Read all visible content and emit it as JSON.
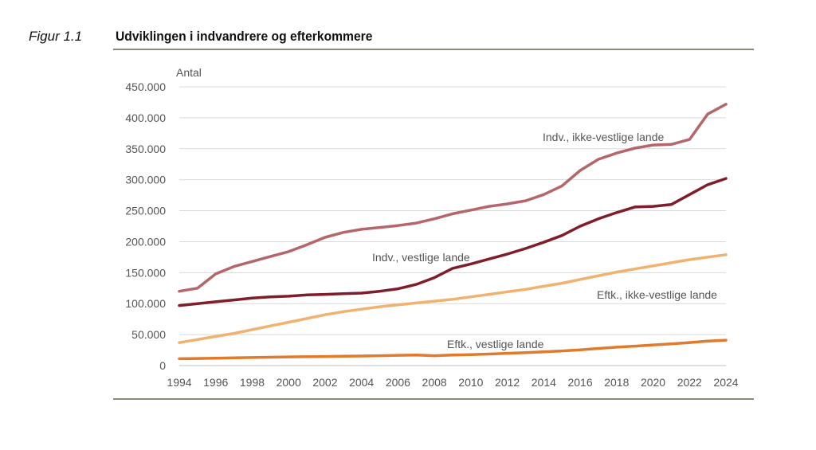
{
  "figure": {
    "label": "Figur 1.1",
    "title": "Udviklingen i indvandrere og efterkommere"
  },
  "chart_data": {
    "type": "line",
    "ylabel": "Antal",
    "xlabel": "",
    "ylim": [
      0,
      450000
    ],
    "yticks": [
      0,
      50000,
      100000,
      150000,
      200000,
      250000,
      300000,
      350000,
      400000,
      450000
    ],
    "ytick_labels": [
      "0",
      "50.000",
      "100.000",
      "150.000",
      "200.000",
      "250.000",
      "300.000",
      "350.000",
      "400.000",
      "450.000"
    ],
    "xlim": [
      1994,
      2024
    ],
    "xticks": [
      1994,
      1996,
      1998,
      2000,
      2002,
      2004,
      2006,
      2008,
      2010,
      2012,
      2014,
      2016,
      2018,
      2020,
      2022,
      2024
    ],
    "xtick_labels": [
      "1994",
      "1996",
      "1998",
      "2000",
      "2002",
      "2004",
      "2006",
      "2008",
      "2010",
      "2012",
      "2014",
      "2016",
      "2018",
      "2020",
      "2022",
      "2024"
    ],
    "grid": "horizontal",
    "x": [
      1994,
      1995,
      1996,
      1997,
      1998,
      1999,
      2000,
      2001,
      2002,
      2003,
      2004,
      2005,
      2006,
      2007,
      2008,
      2009,
      2010,
      2011,
      2012,
      2013,
      2014,
      2015,
      2016,
      2017,
      2018,
      2019,
      2020,
      2021,
      2022,
      2023,
      2024
    ],
    "series": [
      {
        "name": "Indv., ikke-vestlige lande",
        "color": "#b4666a",
        "values": [
          120000,
          125000,
          148000,
          160000,
          168000,
          176000,
          184000,
          195000,
          207000,
          215000,
          220000,
          223000,
          226000,
          230000,
          237000,
          245000,
          251000,
          257000,
          261000,
          266000,
          276000,
          290000,
          315000,
          333000,
          343000,
          351000,
          356000,
          357000,
          365000,
          406000,
          422000
        ]
      },
      {
        "name": "Indv., vestlige lande",
        "color": "#7f1e2a",
        "values": [
          97000,
          100000,
          103000,
          106000,
          109000,
          111000,
          112000,
          114000,
          115000,
          116000,
          117000,
          120000,
          124000,
          131000,
          142000,
          157000,
          164000,
          172000,
          180000,
          189000,
          199000,
          210000,
          225000,
          237000,
          247000,
          256000,
          257000,
          260000,
          276000,
          292000,
          302000
        ]
      },
      {
        "name": "Eftk., ikke-vestlige lande",
        "color": "#f0b26e",
        "values": [
          37000,
          42000,
          47000,
          52000,
          58000,
          64000,
          70000,
          76000,
          82000,
          87000,
          91000,
          95000,
          98000,
          101000,
          104000,
          107000,
          111000,
          115000,
          119000,
          123000,
          128000,
          133000,
          139000,
          145000,
          151000,
          156000,
          161000,
          166000,
          171000,
          175000,
          179000
        ]
      },
      {
        "name": "Eftk., vestlige lande",
        "color": "#e07a2c",
        "values": [
          11000,
          11500,
          12000,
          12500,
          13000,
          13500,
          14000,
          14300,
          14600,
          15000,
          15400,
          16000,
          16600,
          17000,
          16000,
          17000,
          17600,
          18600,
          19800,
          21000,
          22200,
          23600,
          25500,
          27600,
          29700,
          31400,
          33300,
          35100,
          37200,
          39500,
          41000
        ]
      }
    ],
    "annotations": [
      {
        "series": 0,
        "text": "Indv., ikke-vestlige lande"
      },
      {
        "series": 1,
        "text": "Indv., vestlige lande"
      },
      {
        "series": 2,
        "text": "Eftk., ikke-vestlige lande"
      },
      {
        "series": 3,
        "text": "Eftk., vestlige lande"
      }
    ]
  }
}
